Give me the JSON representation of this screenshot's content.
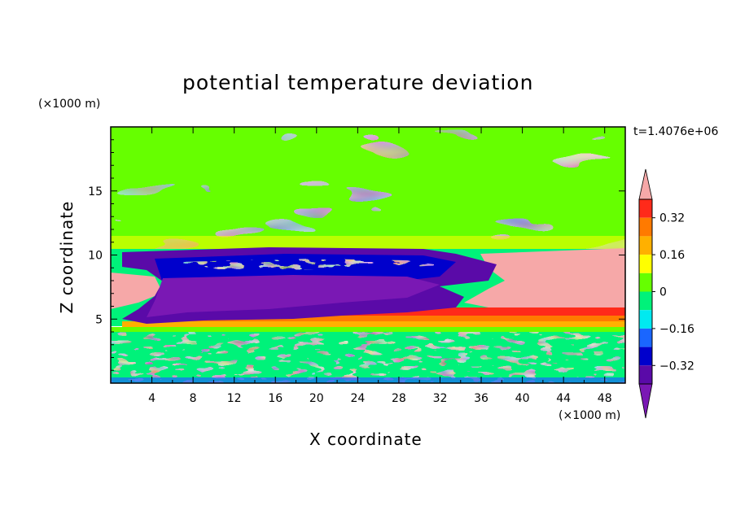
{
  "chart_data": {
    "type": "heatmap",
    "title": "potential temperature deviation",
    "xlabel": "X coordinate",
    "ylabel": "Z coordinate",
    "x_unit": "(×1000 m)",
    "y_unit": "(×1000 m)",
    "time_label": "t=1.4076e+06",
    "xlim": [
      0,
      50
    ],
    "ylim": [
      0,
      20
    ],
    "x_ticks": [
      "4",
      "8",
      "12",
      "16",
      "20",
      "24",
      "28",
      "32",
      "36",
      "40",
      "44",
      "48"
    ],
    "y_ticks": [
      "5",
      "10",
      "15"
    ],
    "colorbar": {
      "tick_labels": [
        "0.32",
        "0.16",
        "0",
        "−0.16",
        "−0.32"
      ],
      "tick_values": [
        0.32,
        0.16,
        0,
        -0.16,
        -0.32
      ],
      "range": [
        -0.4,
        0.4
      ],
      "bands": [
        {
          "color": "#f6a8a8",
          "range": [
            0.4,
            0.48
          ]
        },
        {
          "color": "#ff2a1a",
          "range": [
            0.32,
            0.4
          ]
        },
        {
          "color": "#ff7a00",
          "range": [
            0.24,
            0.32
          ]
        },
        {
          "color": "#ffb000",
          "range": [
            0.16,
            0.24
          ]
        },
        {
          "color": "#ffff00",
          "range": [
            0.08,
            0.16
          ]
        },
        {
          "color": "#66ff00",
          "range": [
            0,
            0.08
          ]
        },
        {
          "color": "#00f27a",
          "range": [
            -0.08,
            0
          ]
        },
        {
          "color": "#00eaf0",
          "range": [
            -0.16,
            -0.08
          ]
        },
        {
          "color": "#1a66ff",
          "range": [
            -0.24,
            -0.16
          ]
        },
        {
          "color": "#0000cc",
          "range": [
            -0.32,
            -0.24
          ]
        },
        {
          "color": "#5a0aa8",
          "range": [
            -0.4,
            -0.32
          ]
        },
        {
          "color": "#7a18b4",
          "range": [
            -0.48,
            -0.4
          ]
        }
      ]
    },
    "regions_description": [
      "Upper troposphere (z 10.5–20 km): mostly slightly positive to near zero deviation (green) with streaks of yellow/red and cyan.",
      "Strong cold anomaly (about −0.4) in x 2–34, z 4.3–10.5 km with embedded cyan/blue layers.",
      "Warm anomaly (above +0.4) on the right side x 34–50, z 6–10.3 km and a small warm patch at the left edge near z 8.",
      "Thin warm band (red/orange/yellow) near z 4.5–6 km for x 12–50.",
      "Lower boundary layer (z 0–4 km): noisy mixture of green, teal and cyan."
    ]
  }
}
